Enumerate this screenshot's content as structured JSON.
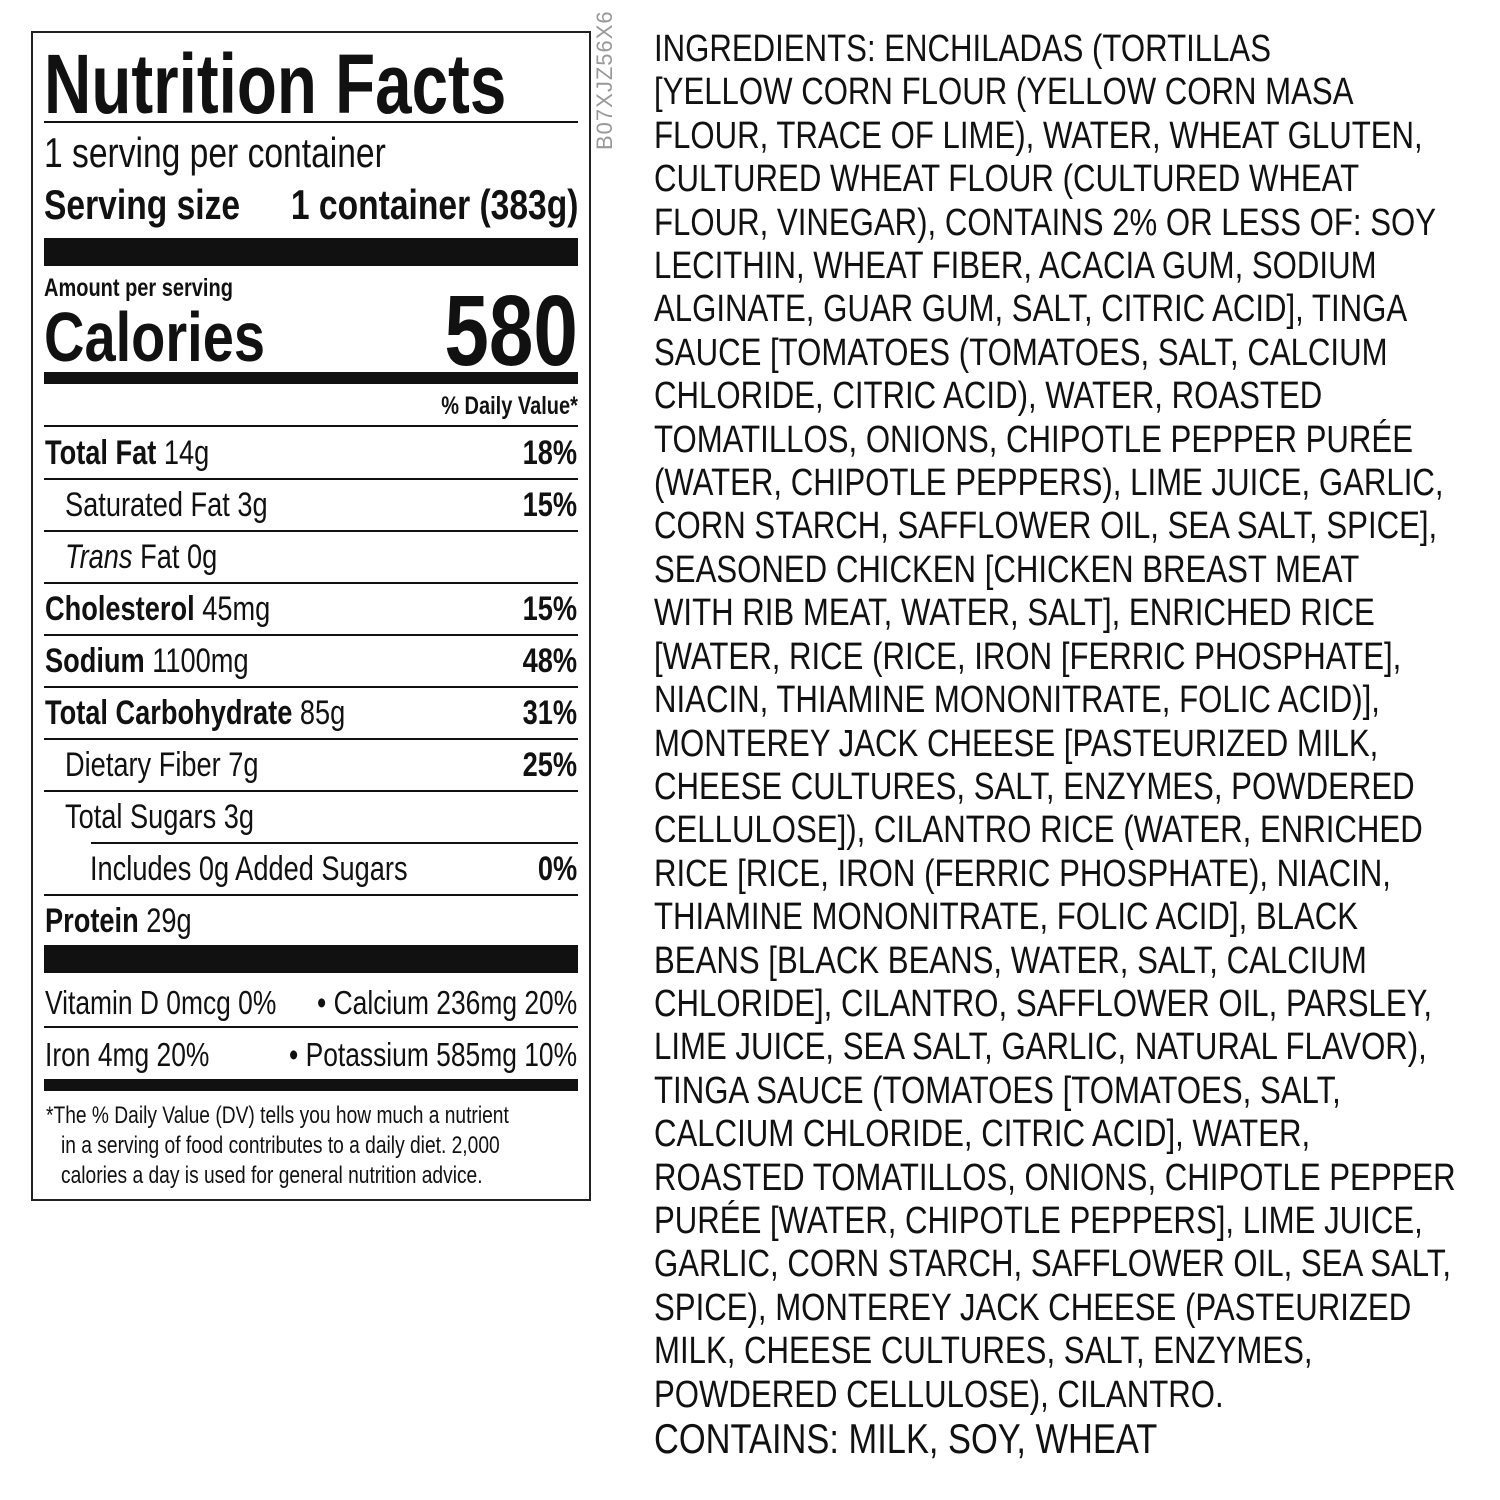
{
  "label": {
    "title": "Nutrition Facts",
    "servings": "1 serving per container",
    "serving_size_label": "Serving size",
    "serving_size_value": "1 container (383g)",
    "amount_per_serving": "Amount per serving",
    "calories_label": "Calories",
    "calories_value": "580",
    "dv_header": "% Daily Value*",
    "rows": [
      {
        "name": "Total Fat",
        "amount": "14g",
        "dv": "18%"
      },
      {
        "name": "Saturated Fat",
        "amount": "3g",
        "dv": "15%"
      },
      {
        "name": "Trans",
        "name2": "Fat",
        "amount": "0g",
        "dv": ""
      },
      {
        "name": "Cholesterol",
        "amount": "45mg",
        "dv": "15%"
      },
      {
        "name": "Sodium",
        "amount": "1100mg",
        "dv": "48%"
      },
      {
        "name": "Total Carbohydrate",
        "amount": "85g",
        "dv": "31%"
      },
      {
        "name": "Dietary Fiber",
        "amount": "7g",
        "dv": "25%"
      },
      {
        "name": "Total Sugars",
        "amount": "3g",
        "dv": ""
      },
      {
        "name": "Includes 0g Added Sugars",
        "amount": "",
        "dv": "0%"
      },
      {
        "name": "Protein",
        "amount": "29g",
        "dv": ""
      }
    ],
    "vitamins": [
      {
        "left": "Vitamin D 0mcg 0%",
        "right": "• Calcium 236mg 20%"
      },
      {
        "left": "Iron 4mg 20%",
        "right": "• Potassium 585mg 10%"
      }
    ],
    "footnote": [
      "*The % Daily Value (DV) tells you how much a nutrient",
      "in a serving of food contributes to a daily diet. 2,000",
      "calories a day is used for general nutrition advice."
    ]
  },
  "sku": "B07XJZ56X6",
  "ingredients": {
    "label": "INGREDIENTS:",
    "lines": [
      " ENCHILADAS (TORTILLAS",
      "[YELLOW CORN FLOUR (YELLOW CORN MASA",
      "FLOUR, TRACE OF LIME), WATER, WHEAT GLUTEN,",
      "CULTURED WHEAT FLOUR (CULTURED WHEAT",
      "FLOUR, VINEGAR), CONTAINS 2% OR LESS OF: SOY",
      "LECITHIN, WHEAT FIBER, ACACIA GUM, SODIUM",
      "ALGINATE, GUAR GUM, SALT, CITRIC ACID], TINGA",
      "SAUCE [TOMATOES (TOMATOES, SALT, CALCIUM",
      "CHLORIDE, CITRIC ACID), WATER, ROASTED",
      "TOMATILLOS, ONIONS, CHIPOTLE PEPPER PURÉE",
      "(WATER, CHIPOTLE PEPPERS), LIME JUICE, GARLIC,",
      "CORN STARCH, SAFFLOWER OIL, SEA SALT, SPICE],",
      "SEASONED CHICKEN [CHICKEN BREAST MEAT",
      "WITH RIB MEAT, WATER, SALT], ENRICHED RICE",
      "[WATER, RICE (RICE, IRON [FERRIC PHOSPHATE],",
      "NIACIN, THIAMINE MONONITRATE, FOLIC ACID)],",
      "MONTEREY JACK CHEESE [PASTEURIZED MILK,",
      "CHEESE CULTURES, SALT, ENZYMES, POWDERED",
      "CELLULOSE]), CILANTRO RICE (WATER, ENRICHED",
      "RICE [RICE, IRON (FERRIC PHOSPHATE), NIACIN,",
      "THIAMINE MONONITRATE, FOLIC ACID], BLACK",
      "BEANS [BLACK BEANS, WATER, SALT, CALCIUM",
      "CHLORIDE], CILANTRO, SAFFLOWER OIL, PARSLEY,",
      "LIME JUICE, SEA SALT, GARLIC, NATURAL FLAVOR),",
      "TINGA SAUCE (TOMATOES [TOMATOES, SALT,",
      "CALCIUM CHLORIDE, CITRIC ACID], WATER,",
      "ROASTED TOMATILLOS, ONIONS, CHIPOTLE PEPPER",
      "PURÉE [WATER, CHIPOTLE PEPPERS], LIME JUICE,",
      "GARLIC, CORN STARCH, SAFFLOWER OIL, SEA SALT,",
      "SPICE), MONTEREY JACK CHEESE (PASTEURIZED",
      "MILK, CHEESE CULTURES, SALT, ENZYMES,",
      "POWDERED CELLULOSE), CILANTRO."
    ],
    "contains": "CONTAINS: MILK, SOY, WHEAT"
  }
}
